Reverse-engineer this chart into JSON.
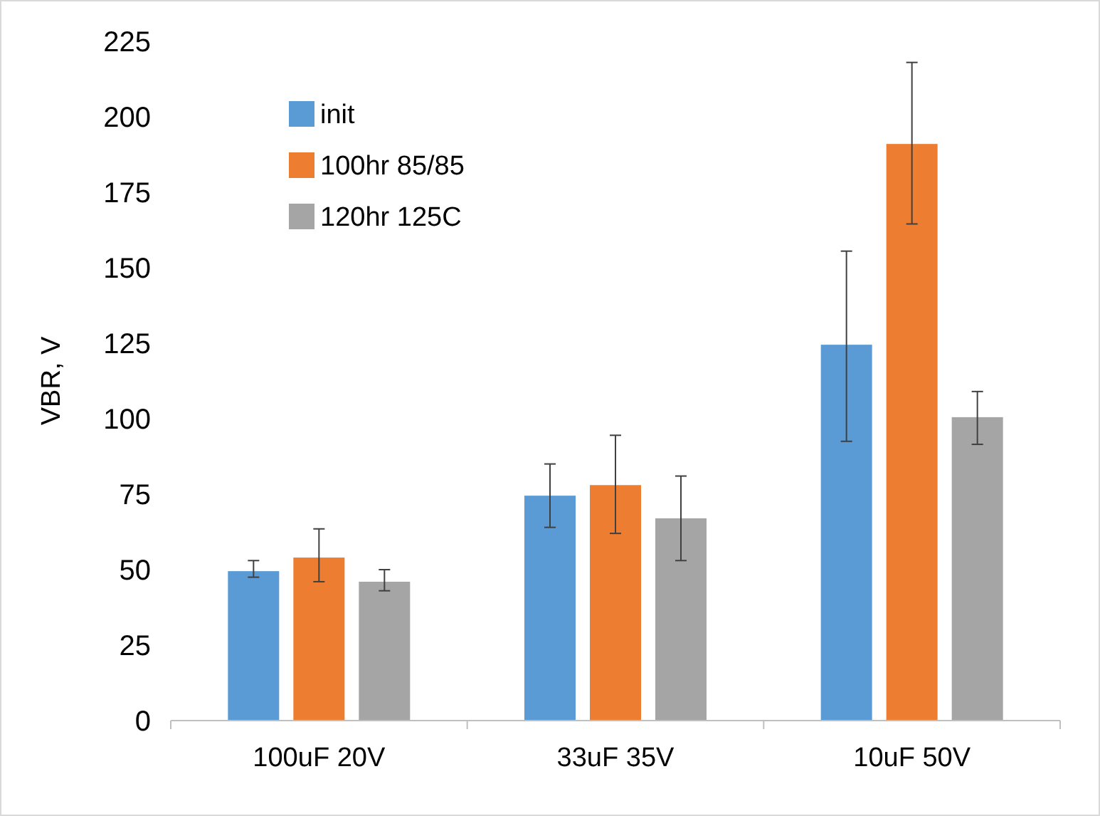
{
  "chart_data": {
    "type": "bar",
    "ylabel": "VBR, V",
    "categories": [
      "100uF 20V",
      "33uF 35V",
      "10uF 50V"
    ],
    "series": [
      {
        "name": "init",
        "color": "#5b9bd5",
        "values": [
          49.5,
          74.5,
          124.5
        ],
        "errors": [
          [
            47.5,
            53
          ],
          [
            64,
            85
          ],
          [
            92.5,
            155.5
          ]
        ]
      },
      {
        "name": "100hr 85/85",
        "color": "#ed7d31",
        "values": [
          54,
          78,
          191
        ],
        "errors": [
          [
            46,
            63.5
          ],
          [
            62,
            94.5
          ],
          [
            164.5,
            218
          ]
        ]
      },
      {
        "name": "120hr 125C",
        "color": "#a5a5a5",
        "values": [
          46,
          67,
          100.5
        ],
        "errors": [
          [
            43,
            50
          ],
          [
            53,
            81
          ],
          [
            91.5,
            109
          ]
        ]
      }
    ],
    "ylim": [
      0,
      225
    ],
    "yticks": [
      0,
      25,
      50,
      75,
      100,
      125,
      150,
      175,
      200,
      225
    ],
    "legend": "top left"
  }
}
